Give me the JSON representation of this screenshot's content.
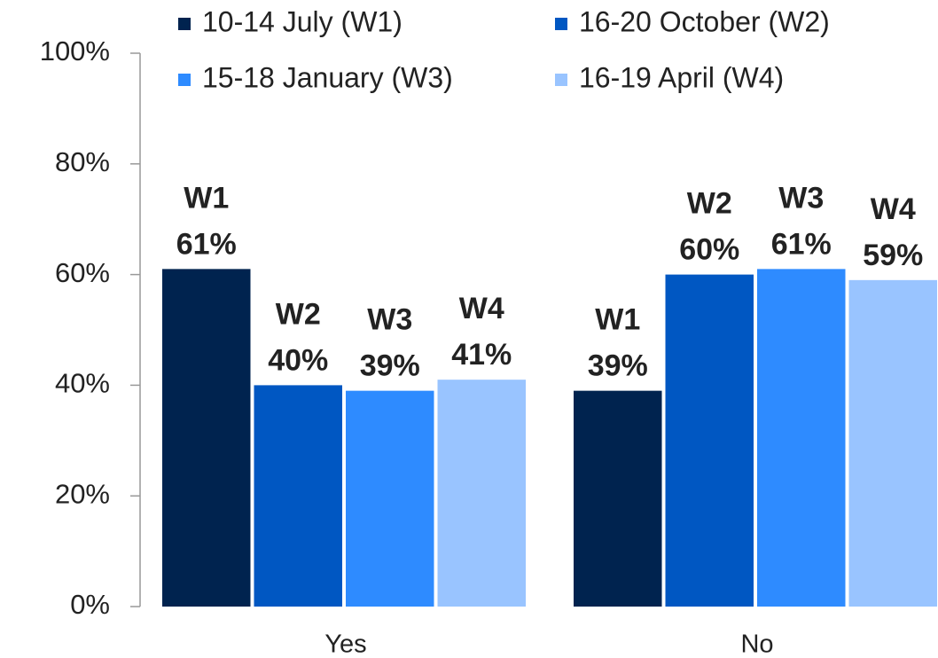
{
  "chart_data": {
    "type": "bar",
    "categories": [
      "Yes",
      "No"
    ],
    "series": [
      {
        "name": "10-14 July (W1)",
        "label": "W1",
        "color": "#00234f",
        "values": [
          61,
          39
        ],
        "value_labels": [
          "61%",
          "39%"
        ]
      },
      {
        "name": "16-20 October (W2)",
        "label": "W2",
        "color": "#0057c2",
        "values": [
          40,
          60
        ],
        "value_labels": [
          "40%",
          "60%"
        ]
      },
      {
        "name": "15-18 January (W3)",
        "label": "W3",
        "color": "#2e8bff",
        "values": [
          39,
          61
        ],
        "value_labels": [
          "39%",
          "61%"
        ]
      },
      {
        "name": "16-19 April (W4)",
        "label": "W4",
        "color": "#99c4ff",
        "values": [
          41,
          59
        ],
        "value_labels": [
          "41%",
          "59%"
        ]
      }
    ],
    "ylim": [
      0,
      100
    ],
    "yticks": [
      {
        "value": 0,
        "label": "0%"
      },
      {
        "value": 20,
        "label": "20%"
      },
      {
        "value": 40,
        "label": "40%"
      },
      {
        "value": 60,
        "label": "60%"
      },
      {
        "value": 80,
        "label": "80%"
      },
      {
        "value": 100,
        "label": "100%"
      }
    ],
    "legend": "top"
  }
}
